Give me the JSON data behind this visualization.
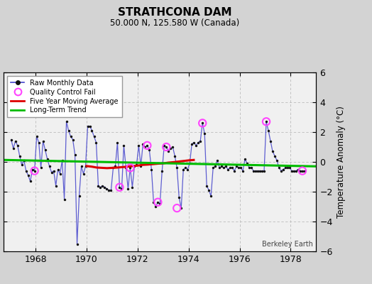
{
  "title": "STRATHCONA DAM",
  "subtitle": "50.000 N, 125.580 W (Canada)",
  "ylabel": "Temperature Anomaly (°C)",
  "credit": "Berkeley Earth",
  "background_color": "#d3d3d3",
  "plot_bg_color": "#f0f0f0",
  "ylim": [
    -6,
    6
  ],
  "xlim": [
    1966.75,
    1979.0
  ],
  "xticks": [
    1968,
    1970,
    1972,
    1974,
    1976,
    1978
  ],
  "yticks": [
    -6,
    -4,
    -2,
    0,
    2,
    4,
    6
  ],
  "raw_x": [
    1967.042,
    1967.125,
    1967.208,
    1967.292,
    1967.375,
    1967.458,
    1967.542,
    1967.625,
    1967.708,
    1967.792,
    1967.875,
    1967.958,
    1968.042,
    1968.125,
    1968.208,
    1968.292,
    1968.375,
    1968.458,
    1968.542,
    1968.625,
    1968.708,
    1968.792,
    1968.875,
    1968.958,
    1969.042,
    1969.125,
    1969.208,
    1969.292,
    1969.375,
    1969.458,
    1969.542,
    1969.625,
    1969.708,
    1969.792,
    1969.875,
    1969.958,
    1970.042,
    1970.125,
    1970.208,
    1970.292,
    1970.375,
    1970.458,
    1970.542,
    1970.625,
    1970.708,
    1970.792,
    1970.875,
    1970.958,
    1971.042,
    1971.125,
    1971.208,
    1971.292,
    1971.375,
    1971.458,
    1971.542,
    1971.625,
    1971.708,
    1971.792,
    1971.875,
    1971.958,
    1972.042,
    1972.125,
    1972.208,
    1972.292,
    1972.375,
    1972.458,
    1972.542,
    1972.625,
    1972.708,
    1972.792,
    1972.875,
    1972.958,
    1973.042,
    1973.125,
    1973.208,
    1973.292,
    1973.375,
    1973.458,
    1973.542,
    1973.625,
    1973.708,
    1973.792,
    1973.875,
    1973.958,
    1974.042,
    1974.125,
    1974.208,
    1974.292,
    1974.375,
    1974.458,
    1974.542,
    1974.625,
    1974.708,
    1974.792,
    1974.875,
    1974.958,
    1975.042,
    1975.125,
    1975.208,
    1975.292,
    1975.375,
    1975.458,
    1975.542,
    1975.625,
    1975.708,
    1975.792,
    1975.875,
    1975.958,
    1976.042,
    1976.125,
    1976.208,
    1976.292,
    1976.375,
    1976.458,
    1976.542,
    1976.625,
    1976.708,
    1976.792,
    1976.875,
    1976.958,
    1977.042,
    1977.125,
    1977.208,
    1977.292,
    1977.375,
    1977.458,
    1977.542,
    1977.625,
    1977.708,
    1977.792,
    1977.875,
    1977.958,
    1978.042,
    1978.125,
    1978.208,
    1978.292,
    1978.375,
    1978.458,
    1978.542
  ],
  "raw_y": [
    1.5,
    0.9,
    1.4,
    1.1,
    0.4,
    -0.2,
    0.1,
    -0.6,
    -0.9,
    -1.3,
    -0.5,
    -0.6,
    1.7,
    1.3,
    -0.4,
    1.4,
    0.8,
    0.2,
    -0.3,
    -0.7,
    -0.6,
    -1.6,
    -0.5,
    -0.8,
    0.1,
    -2.5,
    2.7,
    2.1,
    1.7,
    1.5,
    0.5,
    -5.5,
    -2.3,
    -0.3,
    -0.8,
    -0.3,
    2.4,
    2.4,
    2.1,
    1.7,
    1.3,
    -1.6,
    -1.7,
    -1.6,
    -1.7,
    -1.8,
    -1.9,
    -1.9,
    -0.4,
    -0.3,
    1.3,
    -1.7,
    -1.8,
    1.1,
    -0.4,
    -1.8,
    -0.4,
    -1.7,
    -0.3,
    -0.2,
    1.1,
    -0.3,
    1.2,
    1.0,
    1.1,
    0.8,
    -0.5,
    -2.7,
    -3.0,
    -2.7,
    -2.8,
    -0.6,
    1.1,
    1.0,
    0.7,
    0.9,
    1.0,
    0.4,
    -0.4,
    -2.4,
    -3.1,
    -0.5,
    -0.4,
    -0.5,
    -0.1,
    1.2,
    1.3,
    1.1,
    1.3,
    1.4,
    2.6,
    1.9,
    -1.6,
    -1.9,
    -2.3,
    -0.4,
    -0.3,
    0.1,
    -0.4,
    -0.3,
    -0.4,
    -0.3,
    -0.5,
    -0.4,
    -0.4,
    -0.6,
    -0.3,
    -0.4,
    -0.4,
    -0.6,
    0.2,
    -0.1,
    -0.4,
    -0.4,
    -0.6,
    -0.6,
    -0.6,
    -0.6,
    -0.6,
    -0.6,
    2.7,
    2.1,
    1.4,
    0.7,
    0.4,
    0.1,
    -0.4,
    -0.6,
    -0.5,
    -0.4,
    -0.4,
    -0.4,
    -0.6,
    -0.6,
    -0.6,
    -0.5,
    -0.6,
    -0.6,
    -0.6
  ],
  "qc_fail_x": [
    1967.958,
    1971.292,
    1971.708,
    1972.375,
    1972.792,
    1973.125,
    1973.542,
    1974.542,
    1977.042,
    1978.458
  ],
  "qc_fail_y": [
    -0.6,
    -1.7,
    -0.4,
    1.1,
    -2.7,
    1.0,
    -3.1,
    2.6,
    2.7,
    -0.6
  ],
  "ma_x": [
    1970.0,
    1970.2,
    1970.4,
    1970.6,
    1970.8,
    1971.0,
    1971.2,
    1971.4,
    1971.6,
    1971.8,
    1972.0,
    1972.2,
    1972.4,
    1972.6,
    1972.8,
    1973.0,
    1973.2,
    1973.4,
    1973.6,
    1973.8,
    1974.0,
    1974.2
  ],
  "ma_y": [
    -0.28,
    -0.32,
    -0.38,
    -0.4,
    -0.42,
    -0.4,
    -0.38,
    -0.35,
    -0.32,
    -0.28,
    -0.25,
    -0.2,
    -0.18,
    -0.15,
    -0.12,
    -0.1,
    -0.05,
    -0.02,
    0.02,
    0.06,
    0.1,
    0.13
  ],
  "trend_x": [
    1966.75,
    1979.0
  ],
  "trend_y": [
    0.13,
    -0.3
  ],
  "line_color": "#4444cc",
  "line_alpha": 0.85,
  "dot_color": "#111111",
  "qc_color": "#ff44ff",
  "ma_color": "#dd0000",
  "trend_color": "#00bb00",
  "grid_color": "#bbbbbb"
}
